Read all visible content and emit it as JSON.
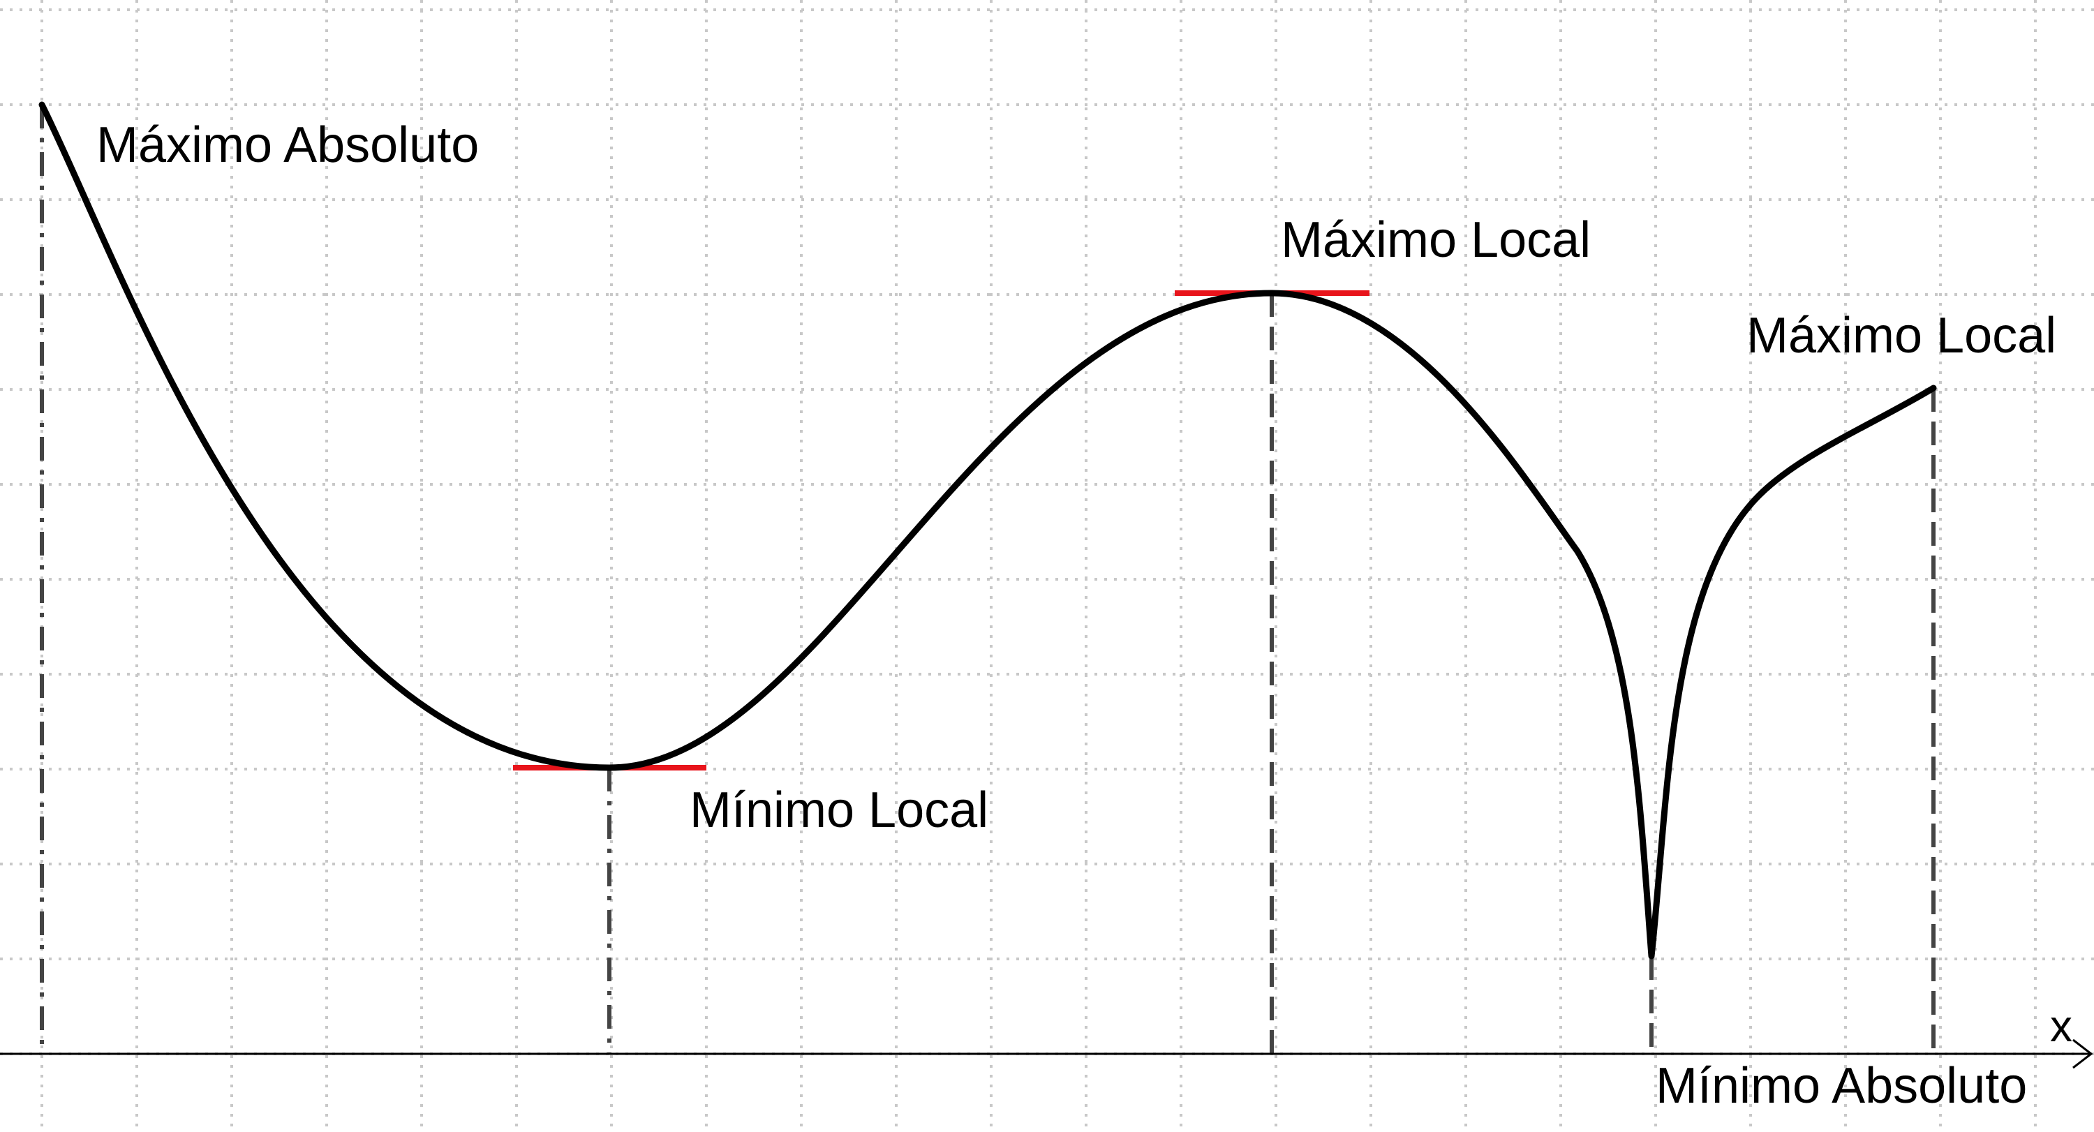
{
  "diagram": {
    "axis_label": "x",
    "colors": {
      "curve": "#000000",
      "tangent": "#e8141b",
      "grid": "#c8c8c8",
      "guide": "#444444",
      "axis": "#000000"
    },
    "points": [
      {
        "id": "max-abs",
        "label": "Máximo Absoluto"
      },
      {
        "id": "min-local",
        "label": "Mínimo Local"
      },
      {
        "id": "max-local-1",
        "label": "Máximo Local"
      },
      {
        "id": "min-abs",
        "label": "Mínimo Absoluto"
      },
      {
        "id": "max-local-2",
        "label": "Máximo Local"
      }
    ]
  }
}
